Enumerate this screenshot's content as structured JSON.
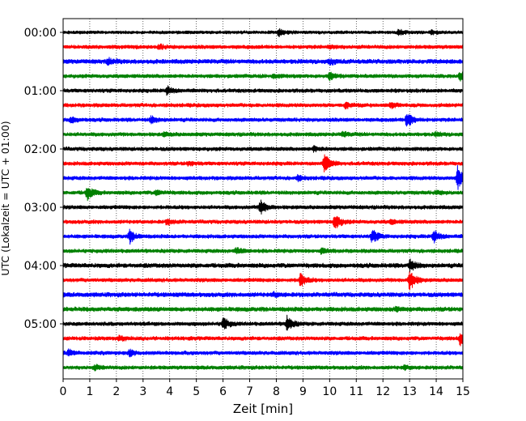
{
  "chart_data": {
    "type": "line",
    "xlabel": "Zeit  [min]",
    "ylabel": "UTC (Lokalzeit = UTC + 01:00)",
    "xlim": [
      0,
      15
    ],
    "x_ticks": [
      0,
      1,
      2,
      3,
      4,
      5,
      6,
      7,
      8,
      9,
      10,
      11,
      12,
      13,
      14,
      15
    ],
    "y_tick_labels": [
      "00:00",
      "01:00",
      "02:00",
      "03:00",
      "04:00",
      "05:00"
    ],
    "minutes_per_trace": 15,
    "trace_color_cycle": [
      "#000000",
      "#ff0000",
      "#0000ff",
      "#008000"
    ],
    "grid_x": "dotted",
    "grid_y": false,
    "traces": [
      {
        "start": "00:00",
        "color": "#000000",
        "noise": 0.25,
        "events": [
          {
            "t": 8.1,
            "amp": 0.65
          },
          {
            "t": 12.6,
            "amp": 0.5
          },
          {
            "t": 13.8,
            "amp": 0.35
          }
        ]
      },
      {
        "start": "00:15",
        "color": "#ff0000",
        "noise": 0.3,
        "events": [
          {
            "t": 3.6,
            "amp": 0.35
          },
          {
            "t": 10.0,
            "amp": 0.3
          }
        ]
      },
      {
        "start": "00:30",
        "color": "#0000ff",
        "noise": 0.35,
        "events": [
          {
            "t": 1.7,
            "amp": 0.45
          },
          {
            "t": 10.0,
            "amp": 0.4
          }
        ]
      },
      {
        "start": "00:45",
        "color": "#008000",
        "noise": 0.3,
        "events": [
          {
            "t": 7.9,
            "amp": 0.3
          },
          {
            "t": 10.0,
            "amp": 0.6
          },
          {
            "t": 14.9,
            "amp": 0.8
          }
        ]
      },
      {
        "start": "01:00",
        "color": "#000000",
        "noise": 0.3,
        "events": [
          {
            "t": 3.9,
            "amp": 0.7
          }
        ]
      },
      {
        "start": "01:15",
        "color": "#ff0000",
        "noise": 0.3,
        "events": [
          {
            "t": 10.6,
            "amp": 0.45
          },
          {
            "t": 12.3,
            "amp": 0.4
          }
        ]
      },
      {
        "start": "01:30",
        "color": "#0000ff",
        "noise": 0.3,
        "events": [
          {
            "t": 0.3,
            "amp": 0.5
          },
          {
            "t": 3.3,
            "amp": 0.6
          },
          {
            "t": 12.9,
            "amp": 1.4
          }
        ]
      },
      {
        "start": "01:45",
        "color": "#008000",
        "noise": 0.3,
        "events": [
          {
            "t": 3.8,
            "amp": 0.3
          },
          {
            "t": 10.5,
            "amp": 0.35
          },
          {
            "t": 14.0,
            "amp": 0.3
          }
        ]
      },
      {
        "start": "02:00",
        "color": "#000000",
        "noise": 0.3,
        "events": [
          {
            "t": 9.4,
            "amp": 0.4
          }
        ]
      },
      {
        "start": "02:15",
        "color": "#ff0000",
        "noise": 0.3,
        "events": [
          {
            "t": 4.7,
            "amp": 0.3
          },
          {
            "t": 9.8,
            "amp": 1.6
          }
        ]
      },
      {
        "start": "02:30",
        "color": "#0000ff",
        "noise": 0.3,
        "events": [
          {
            "t": 8.8,
            "amp": 0.4
          },
          {
            "t": 14.8,
            "amp": 2.0
          }
        ]
      },
      {
        "start": "02:45",
        "color": "#008000",
        "noise": 0.3,
        "events": [
          {
            "t": 0.9,
            "amp": 1.2
          },
          {
            "t": 3.5,
            "amp": 0.4
          },
          {
            "t": 14.0,
            "amp": 0.3
          }
        ]
      },
      {
        "start": "03:00",
        "color": "#000000",
        "noise": 0.3,
        "events": [
          {
            "t": 7.4,
            "amp": 1.3
          }
        ]
      },
      {
        "start": "03:15",
        "color": "#ff0000",
        "noise": 0.3,
        "events": [
          {
            "t": 3.9,
            "amp": 0.4
          },
          {
            "t": 10.2,
            "amp": 1.4
          },
          {
            "t": 12.3,
            "amp": 0.3
          }
        ]
      },
      {
        "start": "03:30",
        "color": "#0000ff",
        "noise": 0.3,
        "events": [
          {
            "t": 2.5,
            "amp": 1.1
          },
          {
            "t": 11.6,
            "amp": 1.2
          },
          {
            "t": 13.9,
            "amp": 1.1
          }
        ]
      },
      {
        "start": "03:45",
        "color": "#008000",
        "noise": 0.3,
        "events": [
          {
            "t": 6.5,
            "amp": 0.5
          },
          {
            "t": 9.7,
            "amp": 0.4
          }
        ]
      },
      {
        "start": "04:00",
        "color": "#000000",
        "noise": 0.35,
        "events": [
          {
            "t": 13.0,
            "amp": 1.0
          }
        ]
      },
      {
        "start": "04:15",
        "color": "#ff0000",
        "noise": 0.3,
        "events": [
          {
            "t": 8.9,
            "amp": 1.2
          },
          {
            "t": 13.0,
            "amp": 1.8
          }
        ]
      },
      {
        "start": "04:30",
        "color": "#0000ff",
        "noise": 0.35,
        "events": [
          {
            "t": 7.9,
            "amp": 0.3
          }
        ]
      },
      {
        "start": "04:45",
        "color": "#008000",
        "noise": 0.35,
        "events": [
          {
            "t": 12.5,
            "amp": 0.3
          }
        ]
      },
      {
        "start": "05:00",
        "color": "#000000",
        "noise": 0.3,
        "events": [
          {
            "t": 6.0,
            "amp": 1.1
          },
          {
            "t": 8.4,
            "amp": 1.3
          }
        ]
      },
      {
        "start": "05:15",
        "color": "#ff0000",
        "noise": 0.3,
        "events": [
          {
            "t": 2.1,
            "amp": 0.4
          },
          {
            "t": 14.9,
            "amp": 1.2
          }
        ]
      },
      {
        "start": "05:30",
        "color": "#0000ff",
        "noise": 0.3,
        "events": [
          {
            "t": 0.2,
            "amp": 0.5
          },
          {
            "t": 2.5,
            "amp": 0.5
          }
        ]
      },
      {
        "start": "05:45",
        "color": "#008000",
        "noise": 0.3,
        "events": [
          {
            "t": 1.2,
            "amp": 0.4
          },
          {
            "t": 12.8,
            "amp": 0.3
          }
        ]
      }
    ]
  }
}
